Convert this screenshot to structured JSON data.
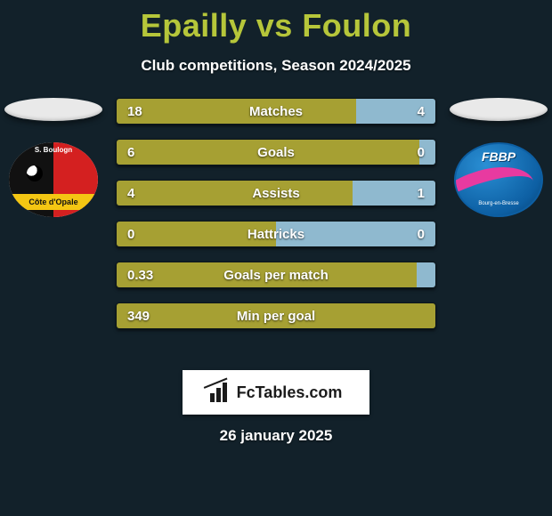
{
  "background_color": "#12212a",
  "title": {
    "text": "Epailly vs Foulon",
    "color": "#b6c63a",
    "fontsize": 36
  },
  "subtitle": {
    "text": "Club competitions, Season 2024/2025",
    "color": "#ffffff",
    "fontsize": 17
  },
  "colors": {
    "bar_left": "#a6a033",
    "bar_right": "#8fb9cf",
    "bar_full": "#a6a033",
    "bar_outline": "rgba(0,0,0,0.35)",
    "value_text": "#ffffff"
  },
  "stats": [
    {
      "label": "Matches",
      "left_value": "18",
      "right_value": "4",
      "left_pct": 75,
      "right_pct": 25
    },
    {
      "label": "Goals",
      "left_value": "6",
      "right_value": "0",
      "left_pct": 95,
      "right_pct": 5
    },
    {
      "label": "Assists",
      "left_value": "4",
      "right_value": "1",
      "left_pct": 74,
      "right_pct": 26
    },
    {
      "label": "Hattricks",
      "left_value": "0",
      "right_value": "0",
      "left_pct": 50,
      "right_pct": 50
    },
    {
      "label": "Goals per match",
      "left_value": "0.33",
      "right_value": "",
      "left_pct": 94,
      "right_pct": 6
    },
    {
      "label": "Min per goal",
      "left_value": "349",
      "right_value": "",
      "left_pct": 100,
      "right_pct": 0
    }
  ],
  "badges": {
    "left": {
      "top_text": "S. Boulogn",
      "band_text": "Côte d'Opale",
      "colors": {
        "left_half": "#111111",
        "right_half": "#d42020",
        "band": "#f4c613"
      }
    },
    "right": {
      "text": "FBBP",
      "sub": "Bourg-en-Bresse",
      "colors": {
        "bg1": "#2a8fd4",
        "bg2": "#0d5fa3",
        "swoosh": "#e83aa0"
      }
    }
  },
  "watermark": {
    "text": "FcTables.com"
  },
  "date": {
    "text": "26 january 2025"
  }
}
